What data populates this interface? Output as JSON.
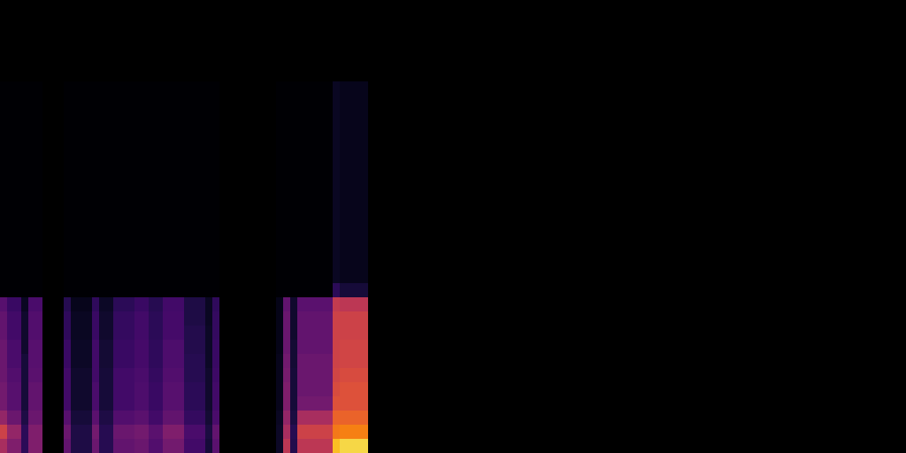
{
  "chart_data": {
    "type": "heatmap",
    "color": "inferno",
    "tick_labels": false,
    "grid": false,
    "xlim": [
      0,
      1024
    ],
    "ylim": [
      0,
      512
    ],
    "zlim": [
      0,
      1
    ],
    "y_bins": [
      0,
      16,
      32,
      48,
      64,
      80,
      96,
      112,
      128,
      144,
      160,
      176,
      192,
      420
    ],
    "segments": [
      {
        "x": [
          0,
          8
        ],
        "values": [
          0.45,
          0.55,
          0.4,
          0.32,
          0.32,
          0.3,
          0.3,
          0.3,
          0.28,
          0.28,
          0.25,
          0,
          0
        ]
      },
      {
        "x": [
          8,
          24
        ],
        "values": [
          0.35,
          0.4,
          0.3,
          0.25,
          0.25,
          0.24,
          0.22,
          0.22,
          0.2,
          0.2,
          0.18,
          0,
          0
        ]
      },
      {
        "x": [
          24,
          32
        ],
        "values": [
          0.15,
          0.15,
          0.12,
          0.1,
          0.1,
          0.1,
          0.1,
          0.08,
          0.08,
          0.08,
          0.06,
          0,
          0
        ]
      },
      {
        "x": [
          32,
          48
        ],
        "values": [
          0.35,
          0.35,
          0.3,
          0.28,
          0.28,
          0.26,
          0.25,
          0.25,
          0.24,
          0.24,
          0.22,
          0,
          0
        ]
      },
      {
        "x": [
          72,
          80
        ],
        "values": [
          0.28,
          0.3,
          0.25,
          0.2,
          0.2,
          0.2,
          0.18,
          0.18,
          0.16,
          0.16,
          0.14,
          0,
          0
        ]
      },
      {
        "x": [
          80,
          104
        ],
        "values": [
          0.12,
          0.12,
          0.1,
          0.08,
          0.08,
          0.08,
          0.07,
          0.07,
          0.06,
          0.06,
          0.05,
          0,
          0
        ]
      },
      {
        "x": [
          104,
          112
        ],
        "values": [
          0.3,
          0.32,
          0.26,
          0.22,
          0.22,
          0.2,
          0.2,
          0.2,
          0.18,
          0.18,
          0.16,
          0,
          0
        ]
      },
      {
        "x": [
          112,
          128
        ],
        "values": [
          0.14,
          0.14,
          0.12,
          0.1,
          0.1,
          0.1,
          0.09,
          0.09,
          0.08,
          0.08,
          0.07,
          0,
          0
        ]
      },
      {
        "x": [
          128,
          152
        ],
        "values": [
          0.28,
          0.3,
          0.24,
          0.2,
          0.2,
          0.2,
          0.18,
          0.18,
          0.17,
          0.17,
          0.15,
          0,
          0
        ]
      },
      {
        "x": [
          152,
          168
        ],
        "values": [
          0.3,
          0.32,
          0.26,
          0.23,
          0.23,
          0.22,
          0.21,
          0.21,
          0.2,
          0.2,
          0.18,
          0,
          0
        ]
      },
      {
        "x": [
          168,
          184
        ],
        "values": [
          0.24,
          0.26,
          0.2,
          0.18,
          0.18,
          0.17,
          0.16,
          0.16,
          0.15,
          0.15,
          0.14,
          0,
          0
        ]
      },
      {
        "x": [
          184,
          208
        ],
        "values": [
          0.32,
          0.35,
          0.28,
          0.25,
          0.25,
          0.24,
          0.23,
          0.23,
          0.21,
          0.21,
          0.2,
          0,
          0
        ]
      },
      {
        "x": [
          208,
          232
        ],
        "values": [
          0.2,
          0.22,
          0.17,
          0.15,
          0.15,
          0.14,
          0.14,
          0.13,
          0.13,
          0.12,
          0.12,
          0,
          0
        ]
      },
      {
        "x": [
          232,
          240
        ],
        "values": [
          0.1,
          0.11,
          0.09,
          0.08,
          0.08,
          0.08,
          0.07,
          0.07,
          0.07,
          0.06,
          0.06,
          0,
          0
        ]
      },
      {
        "x": [
          240,
          248
        ],
        "values": [
          0.26,
          0.28,
          0.22,
          0.2,
          0.2,
          0.19,
          0.18,
          0.18,
          0.17,
          0.17,
          0.16,
          0,
          0
        ]
      },
      {
        "x": [
          312,
          320
        ],
        "values": [
          0.07,
          0.07,
          0.06,
          0.05,
          0.05,
          0.05,
          0.05,
          0.04,
          0.04,
          0.04,
          0.04,
          0,
          0
        ]
      },
      {
        "x": [
          320,
          328
        ],
        "values": [
          0.5,
          0.45,
          0.4,
          0.35,
          0.35,
          0.33,
          0.32,
          0.3,
          0.3,
          0.3,
          0.28,
          0,
          0
        ]
      },
      {
        "x": [
          328,
          336
        ],
        "values": [
          0.13,
          0.14,
          0.11,
          0.1,
          0.1,
          0.1,
          0.09,
          0.09,
          0.08,
          0.08,
          0.08,
          0,
          0
        ]
      },
      {
        "x": [
          336,
          376
        ],
        "values": [
          0.5,
          0.55,
          0.45,
          0.32,
          0.3,
          0.3,
          0.3,
          0.28,
          0.28,
          0.28,
          0.26,
          0,
          0
        ]
      },
      {
        "x": [
          376,
          384
        ],
        "values": [
          0.85,
          0.7,
          0.65,
          0.6,
          0.58,
          0.56,
          0.55,
          0.55,
          0.55,
          0.55,
          0.52,
          0.15,
          0.06
        ]
      },
      {
        "x": [
          384,
          416
        ],
        "values": [
          0.9,
          0.72,
          0.65,
          0.6,
          0.6,
          0.58,
          0.56,
          0.56,
          0.55,
          0.55,
          0.5,
          0.1,
          0.05
        ]
      }
    ]
  }
}
